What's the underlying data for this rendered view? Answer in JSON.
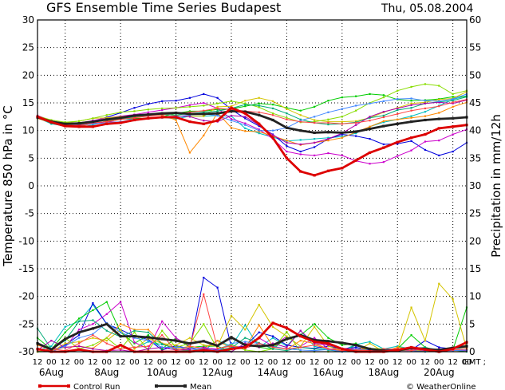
{
  "chart_data": {
    "type": "line",
    "title": "GFS Ensemble Time Series Budapest",
    "date": "Thu, 05.08.2004",
    "ylabel_left": "Temperature 850 hPa in °C",
    "ylabel_right": "Precipitation in mm/12h",
    "y_left_range": [
      -30,
      30
    ],
    "y_right_range": [
      0,
      60
    ],
    "y_left_ticks": [
      30,
      25,
      20,
      15,
      10,
      5,
      0,
      -5,
      -10,
      -15,
      -20,
      -25,
      -30
    ],
    "y_right_ticks": [
      60,
      55,
      50,
      45,
      40,
      35,
      30,
      25,
      20,
      15,
      10,
      5,
      0
    ],
    "x_hours": [
      "12",
      "00",
      "12",
      "00",
      "12",
      "00",
      "12",
      "00",
      "12",
      "00",
      "12",
      "00",
      "12",
      "00",
      "12",
      "00",
      "12",
      "00",
      "12",
      "00",
      "12",
      "00",
      "12",
      "00",
      "12",
      "00",
      "12",
      "00",
      "12",
      "00",
      "12",
      "00"
    ],
    "x_gmt_label": "GMT ;",
    "x_dates": [
      "6Aug",
      "8Aug",
      "10Aug",
      "12Aug",
      "14Aug",
      "16Aug",
      "18Aug",
      "20Aug"
    ],
    "grid": "dotted",
    "legend": {
      "position": "bottom",
      "control_label": "Control Run",
      "mean_label": "Mean",
      "control_color": "#dd0000",
      "mean_color": "#222222"
    },
    "credit": "© WeatherOnline",
    "series": [
      {
        "name": "Control Run",
        "role": "control",
        "color": "#dd0000",
        "width": 2.8,
        "temp": [
          12.5,
          11.5,
          10.8,
          10.7,
          10.7,
          11.2,
          11.4,
          11.9,
          12.2,
          12.4,
          12.4,
          11.6,
          11.2,
          11.8,
          14.1,
          13.1,
          11.2,
          8.7,
          5.0,
          2.6,
          1.9,
          2.7,
          3.2,
          4.6,
          6.0,
          6.9,
          7.9,
          8.7,
          9.3,
          10.4,
          10.7,
          11.0
        ],
        "precip": [
          0.5,
          0,
          0,
          0.4,
          0,
          0,
          1.2,
          0,
          0,
          0,
          0,
          0,
          0.3,
          0,
          0.5,
          0.8,
          2.5,
          5.2,
          4.3,
          2.8,
          1.8,
          1.5,
          0.5,
          0,
          0,
          0,
          0.3,
          0.8,
          0.4,
          0,
          0.5,
          1.7
        ]
      },
      {
        "name": "Mean",
        "role": "mean",
        "color": "#222222",
        "width": 2.8,
        "temp": [
          12.4,
          11.6,
          11.2,
          11.3,
          11.6,
          12.0,
          12.3,
          12.7,
          12.9,
          13.1,
          13.2,
          13.0,
          13.0,
          13.1,
          13.5,
          13.4,
          12.8,
          11.9,
          10.5,
          10.0,
          9.6,
          9.7,
          9.6,
          9.8,
          10.3,
          10.8,
          11.2,
          11.6,
          11.9,
          12.1,
          12.2,
          12.4
        ],
        "precip": [
          1.5,
          0.4,
          2.3,
          3.5,
          4.2,
          5.0,
          2.8,
          2.8,
          2.6,
          2.3,
          2.0,
          1.5,
          1.9,
          1.1,
          2.6,
          1.2,
          1.0,
          1.2,
          2.3,
          3.0,
          2.1,
          1.9,
          1.6,
          1.2,
          0.5,
          0.2,
          0.2,
          0.7,
          0.5,
          0.3,
          0.7,
          1.0
        ]
      },
      {
        "name": "",
        "color": "#00bfbf",
        "width": 1,
        "temp": [
          12.3,
          11.2,
          10.8,
          10.6,
          11.0,
          11.8,
          12.1,
          12.0,
          12.3,
          12.4,
          12.1,
          12.6,
          12.6,
          12.7,
          12.6,
          10.4,
          9.5,
          8.8,
          8.1,
          8.3,
          8.5,
          8.7,
          8.9,
          9.5,
          10.7,
          11.5,
          12.0,
          12.6,
          13.4,
          14.5,
          15.6,
          16.3
        ],
        "precip": [
          0.2,
          1.0,
          4.5,
          5.5,
          8.5,
          5.0,
          4.0,
          0.6,
          1.8,
          1.3,
          0.8,
          0.5,
          0.2,
          2.0,
          1.0,
          4.8,
          0.8,
          2.5,
          1.0,
          3.8,
          1.0,
          0.3,
          0.2,
          1.3,
          1.8,
          0.5,
          1.0,
          0.5,
          0.2,
          0.2,
          0.5,
          0.8
        ]
      },
      {
        "name": "",
        "color": "#0000dd",
        "width": 1,
        "temp": [
          12.6,
          11.6,
          11.1,
          11.3,
          11.7,
          12.4,
          13.2,
          14.1,
          14.8,
          15.3,
          15.4,
          15.9,
          16.6,
          15.9,
          13.8,
          12.2,
          10.8,
          9.3,
          7.2,
          6.2,
          7.0,
          8.5,
          9.3,
          9.0,
          8.5,
          7.5,
          7.6,
          8.1,
          6.5,
          5.5,
          6.2,
          7.8
        ],
        "precip": [
          0,
          0,
          1.2,
          3.0,
          8.8,
          5.0,
          4.0,
          2.8,
          2.2,
          0.3,
          1.1,
          0.5,
          13.4,
          11.6,
          0.8,
          1.0,
          3.5,
          2.8,
          1.2,
          0.8,
          0.6,
          1.0,
          0.5,
          0.8,
          0.3,
          0.2,
          0.2,
          0.3,
          2.0,
          0.8,
          0.5,
          1.8
        ]
      },
      {
        "name": "",
        "color": "#00cc00",
        "width": 1,
        "temp": [
          12.4,
          11.7,
          11.4,
          11.1,
          11.6,
          11.9,
          12.2,
          12.2,
          12.2,
          12.5,
          13.1,
          13.5,
          13.5,
          13.8,
          13.9,
          14.4,
          14.9,
          14.7,
          14.1,
          13.6,
          14.3,
          15.4,
          16.0,
          16.2,
          16.6,
          16.4,
          15.6,
          15.4,
          15.5,
          15.7,
          16.1,
          16.1
        ],
        "precip": [
          2.5,
          0.4,
          3.5,
          6.0,
          7.5,
          9.0,
          3.5,
          1.5,
          3.0,
          0.5,
          2.5,
          0.8,
          1.0,
          1.0,
          0,
          1.5,
          0.8,
          0.5,
          2.5,
          3.0,
          5.0,
          2.5,
          1.2,
          1.5,
          0,
          0.3,
          0.5,
          3.0,
          0.8,
          0.2,
          0.3,
          8.0
        ]
      },
      {
        "name": "",
        "color": "#cc00cc",
        "width": 1,
        "temp": [
          12.7,
          11.8,
          11.3,
          11.4,
          11.8,
          12.3,
          12.6,
          12.9,
          13.3,
          13.7,
          14.1,
          14.6,
          15.0,
          14.0,
          12.1,
          11.3,
          10.2,
          8.5,
          6.2,
          5.7,
          5.5,
          5.9,
          5.5,
          4.5,
          4.0,
          4.3,
          5.4,
          6.4,
          8.0,
          8.2,
          9.3,
          10.2
        ],
        "precip": [
          0,
          0.5,
          0.8,
          4.0,
          5.0,
          6.8,
          9.0,
          1.7,
          0.5,
          5.5,
          2.5,
          1.0,
          0.6,
          0.5,
          1.2,
          0.6,
          2.5,
          1.0,
          2.8,
          1.0,
          2.5,
          0.5,
          0.5,
          0.2,
          0.5,
          0.3,
          0.2,
          0.2,
          0.3,
          0.2,
          0.2,
          0.3
        ]
      },
      {
        "name": "",
        "color": "#d4c400",
        "width": 1,
        "temp": [
          12.3,
          11.5,
          11.4,
          11.7,
          12.2,
          12.3,
          12.5,
          12.7,
          12.8,
          13.0,
          12.7,
          12.6,
          12.6,
          14.3,
          14.4,
          15.4,
          15.9,
          15.3,
          13.9,
          12.8,
          11.9,
          11.6,
          11.6,
          11.7,
          12.3,
          13.3,
          14.1,
          14.9,
          15.1,
          15.6,
          15.8,
          17.0
        ],
        "precip": [
          0,
          0,
          1.5,
          1.8,
          2.5,
          2.0,
          4.0,
          0.5,
          2.4,
          1.5,
          1.2,
          2.5,
          1.2,
          1.0,
          6.5,
          4.0,
          8.5,
          4.5,
          2.8,
          1.0,
          4.5,
          1.0,
          0.2,
          0,
          1.5,
          0,
          0.3,
          8.0,
          2.0,
          12.3,
          9.5,
          0.5
        ]
      },
      {
        "name": "",
        "color": "#ff8800",
        "width": 1,
        "temp": [
          12.2,
          11.4,
          10.9,
          10.8,
          11.2,
          11.7,
          12.0,
          12.4,
          12.7,
          12.8,
          11.9,
          6.0,
          9.1,
          13.2,
          10.5,
          9.9,
          9.8,
          9.0,
          8.2,
          7.4,
          7.8,
          8.2,
          8.7,
          9.7,
          10.7,
          11.7,
          12.0,
          12.3,
          12.6,
          13.2,
          14.3,
          15.1
        ],
        "precip": [
          1.2,
          0.3,
          0.8,
          1.0,
          0.6,
          2.5,
          5.0,
          4.0,
          4.0,
          1.5,
          0.5,
          1.0,
          0.6,
          2.0,
          0.6,
          0.7,
          4.8,
          1.0,
          0.4,
          2.0,
          1.5,
          0.5,
          0.2,
          0.5,
          0.5,
          0,
          0.8,
          0.5,
          0,
          0.2,
          0.6,
          0.8
        ]
      },
      {
        "name": "",
        "color": "#88dd00",
        "width": 1,
        "temp": [
          12.6,
          11.9,
          11.5,
          11.7,
          12.2,
          12.8,
          13.3,
          13.5,
          13.8,
          14.0,
          14.1,
          14.3,
          14.5,
          14.9,
          15.3,
          14.9,
          14.2,
          13.1,
          12.3,
          11.5,
          11.6,
          12.0,
          12.5,
          13.6,
          15.0,
          16.0,
          17.2,
          17.9,
          18.4,
          18.1,
          16.6,
          17.2
        ],
        "precip": [
          0,
          0.5,
          2.5,
          0.5,
          1.2,
          2.5,
          0.5,
          3.5,
          0.2,
          3.8,
          0.8,
          1.5,
          5.0,
          0.5,
          1.3,
          0.3,
          0,
          0.5,
          3.6,
          0,
          0,
          0,
          0,
          0,
          0.6,
          0.5,
          0.2,
          0.3,
          0,
          0.5,
          0.2,
          0.2
        ]
      },
      {
        "name": "",
        "color": "#00aa77",
        "width": 1,
        "temp": [
          12.5,
          11.3,
          10.9,
          11.0,
          11.3,
          11.6,
          12.0,
          12.5,
          12.7,
          12.9,
          12.8,
          13.1,
          13.3,
          13.5,
          14.0,
          14.7,
          14.5,
          14.0,
          13.1,
          12.0,
          11.4,
          11.1,
          11.2,
          11.5,
          12.3,
          12.7,
          13.7,
          14.1,
          14.9,
          15.2,
          15.4,
          16.1
        ],
        "precip": [
          4.2,
          0.5,
          2.0,
          5.5,
          5.7,
          3.8,
          2.7,
          3.8,
          3.5,
          1.4,
          0.4,
          0.2,
          0,
          0.3,
          0.7,
          2.5,
          1.6,
          0.5,
          0.2,
          0.8,
          0.5,
          0.3,
          0,
          1.2,
          0.5,
          0,
          0.2,
          0.5,
          0.8,
          0,
          0.3,
          0
        ]
      },
      {
        "name": "",
        "color": "#aa00aa",
        "width": 1,
        "temp": [
          12.4,
          11.7,
          11.0,
          11.0,
          11.2,
          11.6,
          11.5,
          12.0,
          12.3,
          12.5,
          12.6,
          12.5,
          11.8,
          11.6,
          12.7,
          12.5,
          11.0,
          9.2,
          7.8,
          7.5,
          7.8,
          8.5,
          9.5,
          11.0,
          12.5,
          13.4,
          14.0,
          14.6,
          14.9,
          15.1,
          14.9,
          15.5
        ],
        "precip": [
          0.3,
          2.0,
          0.8,
          1.0,
          0.5,
          0.2,
          0.3,
          0,
          0.5,
          0.8,
          0.3,
          0.4,
          0.8,
          0.3,
          0,
          1.5,
          0.8,
          1.5,
          0.8,
          3.8,
          1.5,
          1.2,
          0.6,
          0.5,
          0.2,
          0.2,
          0.5,
          0.5,
          0.2,
          0.5,
          0.3,
          0.2
        ]
      },
      {
        "name": "",
        "color": "#4488ff",
        "width": 1,
        "temp": [
          12.3,
          11.5,
          11.0,
          10.9,
          11.2,
          11.4,
          11.6,
          12.0,
          12.2,
          12.3,
          12.5,
          12.8,
          13.0,
          12.7,
          11.8,
          11.0,
          10.0,
          10.0,
          10.5,
          11.8,
          12.5,
          13.3,
          13.9,
          14.5,
          14.9,
          15.3,
          15.7,
          15.8,
          15.4,
          15.3,
          15.7,
          16.6
        ],
        "precip": [
          0.5,
          0,
          1.0,
          2.5,
          3.2,
          5.2,
          3.5,
          2.5,
          2.0,
          0.8,
          0.8,
          0.7,
          0.5,
          0.2,
          1.5,
          1.8,
          1.5,
          1.0,
          0.5,
          0.3,
          0.2,
          0.4,
          0,
          0.5,
          0.2,
          0.3,
          0.5,
          0.2,
          0,
          0.2,
          0.2,
          0.3
        ]
      },
      {
        "name": "",
        "color": "#ff4444",
        "width": 1,
        "temp": [
          12.5,
          11.5,
          11.0,
          10.9,
          11.4,
          11.6,
          12.0,
          12.3,
          12.6,
          12.9,
          13.1,
          13.3,
          13.6,
          14.0,
          13.8,
          13.5,
          13.3,
          12.8,
          12.0,
          11.6,
          11.4,
          11.4,
          11.2,
          11.4,
          11.8,
          12.4,
          13.0,
          13.6,
          14.0,
          14.4,
          15.1,
          15.6
        ],
        "precip": [
          0.2,
          0.5,
          0.2,
          1.5,
          3.0,
          1.5,
          0.5,
          0.8,
          1.0,
          3.0,
          0.2,
          0.8,
          10.4,
          0.6,
          1.0,
          0.6,
          1.5,
          0.8,
          0.5,
          0.8,
          1.2,
          0.5,
          0.2,
          0.3,
          0.2,
          0.5,
          0.5,
          0.2,
          0.5,
          0.2,
          0.3,
          0.5
        ]
      }
    ]
  }
}
